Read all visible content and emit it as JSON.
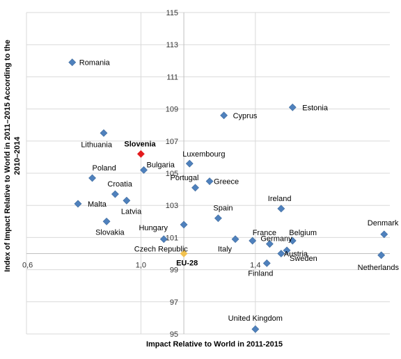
{
  "chart_data": {
    "type": "scatter",
    "title": "",
    "xlabel": "Impact Relative to World in 2011-2015",
    "ylabel": "Index of Impact Relative to World in 2011–2015 According to the 2010–2014",
    "xlim": [
      0.6,
      1.87
    ],
    "ylim": [
      95,
      115
    ],
    "x_ticks": [
      {
        "value": 0.6,
        "label": "0,6"
      },
      {
        "value": 1.0,
        "label": "1,0"
      },
      {
        "value": 1.4,
        "label": "1,4"
      }
    ],
    "y_ticks": [
      {
        "value": 95,
        "label": "95"
      },
      {
        "value": 97,
        "label": "97"
      },
      {
        "value": 99,
        "label": "99"
      },
      {
        "value": 101,
        "label": "101"
      },
      {
        "value": 103,
        "label": "103"
      },
      {
        "value": 105,
        "label": "105"
      },
      {
        "value": 107,
        "label": "107"
      },
      {
        "value": 109,
        "label": "109"
      },
      {
        "value": 111,
        "label": "111"
      },
      {
        "value": 113,
        "label": "113"
      },
      {
        "value": 115,
        "label": "115"
      }
    ],
    "x_gridlines": [
      0.6,
      1.0,
      1.4
    ],
    "grid": true,
    "points": [
      {
        "name": "Romania",
        "x": 0.76,
        "y": 111.9,
        "color": "#4f81bd"
      },
      {
        "name": "Lithuania",
        "x": 0.87,
        "y": 107.5,
        "color": "#4f81bd"
      },
      {
        "name": "Slovenia",
        "x": 1.0,
        "y": 106.2,
        "color": "#e31a1c",
        "highlight": true
      },
      {
        "name": "Bulgaria",
        "x": 1.01,
        "y": 105.2,
        "color": "#4f81bd"
      },
      {
        "name": "Poland",
        "x": 0.83,
        "y": 104.7,
        "color": "#4f81bd"
      },
      {
        "name": "Croatia",
        "x": 0.91,
        "y": 103.7,
        "color": "#4f81bd"
      },
      {
        "name": "Malta",
        "x": 0.78,
        "y": 103.1,
        "color": "#4f81bd"
      },
      {
        "name": "Latvia",
        "x": 0.95,
        "y": 103.3,
        "color": "#4f81bd"
      },
      {
        "name": "Slovakia",
        "x": 0.88,
        "y": 102.0,
        "color": "#4f81bd"
      },
      {
        "name": "Hungary",
        "x": 1.15,
        "y": 101.8,
        "color": "#4f81bd"
      },
      {
        "name": "Czech Republic",
        "x": 1.08,
        "y": 100.9,
        "color": "#4f81bd"
      },
      {
        "name": "EU-28",
        "x": 1.15,
        "y": 100.0,
        "color": "#f2c24f",
        "highlight": true
      },
      {
        "name": "Luxembourg",
        "x": 1.17,
        "y": 105.6,
        "color": "#4f81bd"
      },
      {
        "name": "Portugal",
        "x": 1.19,
        "y": 104.1,
        "color": "#4f81bd"
      },
      {
        "name": "Greece",
        "x": 1.24,
        "y": 104.5,
        "color": "#4f81bd"
      },
      {
        "name": "Cyprus",
        "x": 1.29,
        "y": 108.6,
        "color": "#4f81bd"
      },
      {
        "name": "Spain",
        "x": 1.27,
        "y": 102.2,
        "color": "#4f81bd"
      },
      {
        "name": "Italy",
        "x": 1.33,
        "y": 100.9,
        "color": "#4f81bd"
      },
      {
        "name": "France",
        "x": 1.39,
        "y": 100.8,
        "color": "#4f81bd"
      },
      {
        "name": "Germany",
        "x": 1.45,
        "y": 100.6,
        "color": "#4f81bd"
      },
      {
        "name": "Finland",
        "x": 1.44,
        "y": 99.4,
        "color": "#4f81bd"
      },
      {
        "name": "Ireland",
        "x": 1.49,
        "y": 102.8,
        "color": "#4f81bd"
      },
      {
        "name": "Estonia",
        "x": 1.53,
        "y": 109.1,
        "color": "#4f81bd"
      },
      {
        "name": "Belgium",
        "x": 1.53,
        "y": 100.8,
        "color": "#4f81bd"
      },
      {
        "name": "Austria",
        "x": 1.49,
        "y": 100.0,
        "color": "#4f81bd"
      },
      {
        "name": "Sweden",
        "x": 1.51,
        "y": 100.2,
        "color": "#4f81bd"
      },
      {
        "name": "Denmark",
        "x": 1.85,
        "y": 101.2,
        "color": "#4f81bd"
      },
      {
        "name": "Netherlands",
        "x": 1.84,
        "y": 99.9,
        "color": "#4f81bd"
      },
      {
        "name": "United Kingdom",
        "x": 1.4,
        "y": 95.3,
        "color": "#4f81bd"
      }
    ]
  }
}
